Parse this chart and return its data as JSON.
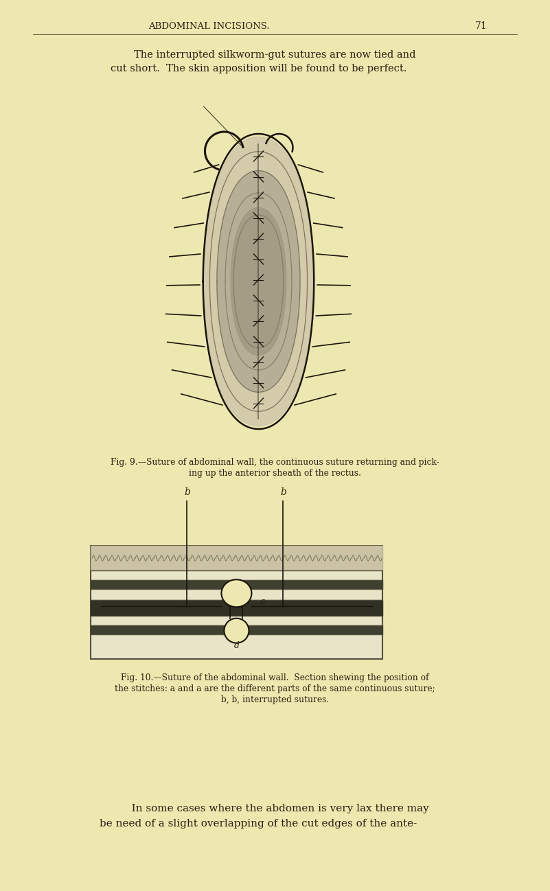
{
  "bg_color": "#ede8b0",
  "header_text": "ABDOMINAL INCISIONS.",
  "page_number": "71",
  "intro_line1": "The interrupted silkworm-gut sutures are now tied and",
  "intro_line2": "cut short.  The skin apposition will be found to be perfect.",
  "fig9_caption1": "Fig. 9.—Suture of abdominal wall, the continuous suture returning and pick-",
  "fig9_caption2": "ing up the anterior sheath of the rectus.",
  "fig10_caption1": "Fig. 10.—Suture of the abdominal wall.  Section shewing the position of",
  "fig10_caption2": "the stitches: a and a are the different parts of the same continuous suture;",
  "fig10_caption3": "b, b, interrupted sutures.",
  "footer_line1": "   In some cases where the abdomen is very lax there may",
  "footer_line2": "be need of a slight overlapping of the cut edges of the ante-",
  "text_color": "#2a2010",
  "dark_color": "#1a1408",
  "fig_width": 801,
  "fig_height": 1298
}
